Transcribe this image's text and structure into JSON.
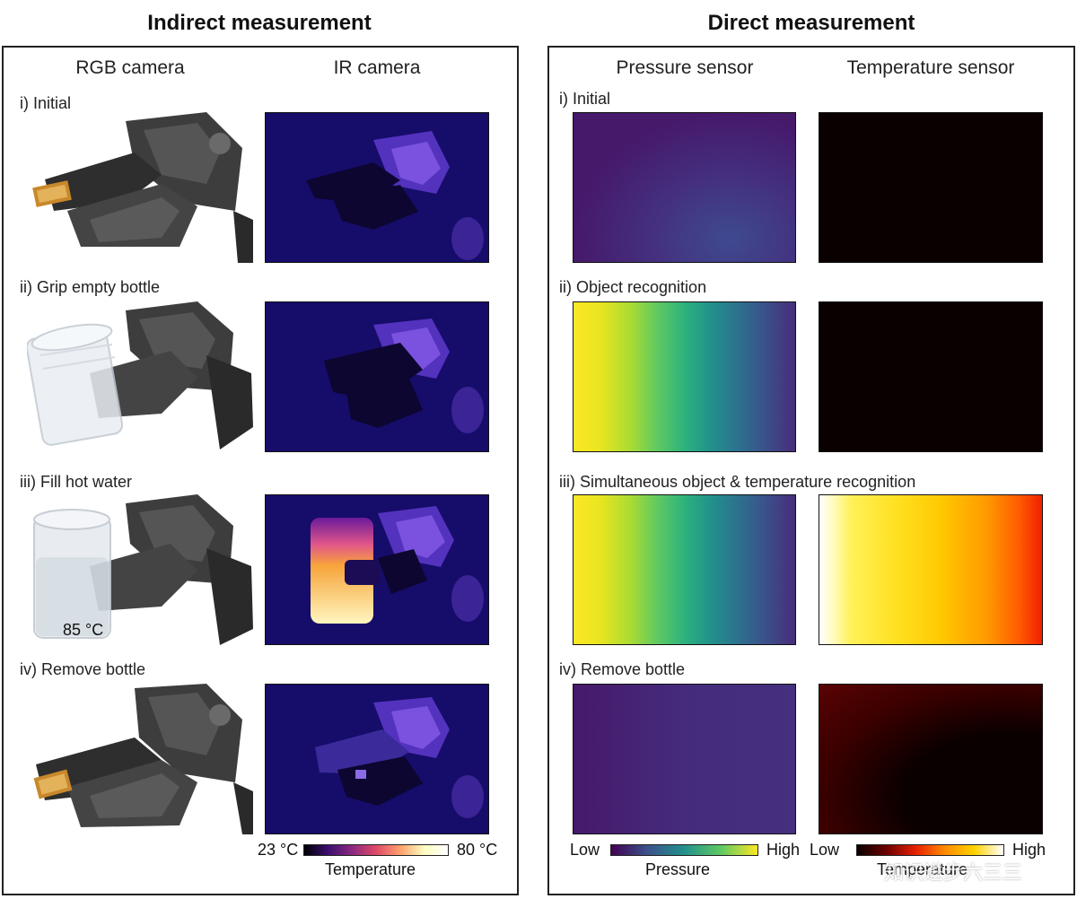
{
  "titles": {
    "indirect": "Indirect measurement",
    "direct": "Direct measurement"
  },
  "indirect": {
    "col_rgb": "RGB camera",
    "col_ir": "IR camera",
    "steps": [
      "i) Initial",
      "ii) Grip empty bottle",
      "iii) Fill hot water",
      "iv) Remove bottle"
    ],
    "bottle_temp_label": "85 °C",
    "colorbar": {
      "min": "23 °C",
      "max": "80 °C",
      "label": "Temperature"
    }
  },
  "direct": {
    "col_pressure": "Pressure sensor",
    "col_temperature": "Temperature sensor",
    "steps": [
      "i) Initial",
      "ii) Object recognition",
      "iii) Simultaneous object & temperature recognition",
      "iv) Remove bottle"
    ],
    "pressure_colorbar": {
      "low": "Low",
      "high": "High",
      "label": "Pressure"
    },
    "temperature_colorbar": {
      "low": "Low",
      "high": "High",
      "label": "Temperature"
    }
  },
  "colors": {
    "ir_background": "#160c6a",
    "viridis": [
      "#440154",
      "#3b528b",
      "#21918c",
      "#5ec962",
      "#fde725"
    ],
    "inferno": [
      "#000004",
      "#57106e",
      "#bc3754",
      "#f98e09",
      "#fcffa4"
    ],
    "hot": [
      "#0b0000",
      "#6a0000",
      "#e62000",
      "#ffd200",
      "#ffffff"
    ]
  },
  "watermark": "知识进步六三三"
}
